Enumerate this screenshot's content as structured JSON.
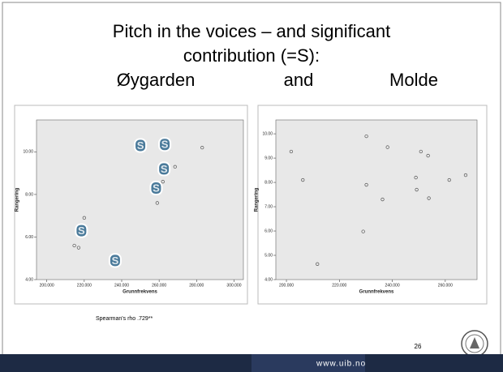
{
  "slide": {
    "title_lines": [
      "Pitch in the voices – and significant",
      "contribution (=S):"
    ],
    "subtitle_left": "Øygarden",
    "subtitle_middle": "and",
    "subtitle_right": "Molde",
    "note": "Spearman's rho .729**",
    "page_number": "26",
    "footer_url": "www.uib.no"
  },
  "chart_data": [
    {
      "type": "scatter",
      "xlabel": "Grunnfrekvens",
      "ylabel": "Rangering",
      "xlim": [
        194.5,
        305
      ],
      "ylim": [
        4,
        11.5
      ],
      "xticks": [
        {
          "value": 200,
          "label": "200.000"
        },
        {
          "value": 220,
          "label": "220.000"
        },
        {
          "value": 240,
          "label": "240.000"
        },
        {
          "value": 260,
          "label": "260.000"
        },
        {
          "value": 280,
          "label": "280.000"
        },
        {
          "value": 300,
          "label": "300.000"
        }
      ],
      "yticks": [
        {
          "value": 4,
          "label": "4.00"
        },
        {
          "value": 6,
          "label": "6.00"
        },
        {
          "value": 8,
          "label": "8.00"
        },
        {
          "value": 10,
          "label": "10.00"
        }
      ],
      "series": [
        {
          "color": "#555555",
          "x": [
            214.7,
            217,
            220,
            262,
            259,
            268.5,
            283
          ],
          "values": [
            5.6,
            5.5,
            6.9,
            8.6,
            7.6,
            9.3,
            10.2
          ]
        },
        {
          "color": "#4a7a9a",
          "marker_label": "S",
          "x": [
            218.5,
            236.5,
            250,
            263,
            262.6,
            258.4
          ],
          "values": [
            6.3,
            4.9,
            10.3,
            10.35,
            9.2,
            8.3
          ]
        }
      ]
    },
    {
      "type": "scatter",
      "xlabel": "Grunnfrekvens",
      "ylabel": "Rangering",
      "xlim": [
        196,
        272
      ],
      "ylim": [
        4,
        10.57
      ],
      "xticks": [
        {
          "value": 200,
          "label": "200.000"
        },
        {
          "value": 220,
          "label": "220.000"
        },
        {
          "value": 240,
          "label": "240.000"
        },
        {
          "value": 260,
          "label": "260.000"
        }
      ],
      "yticks": [
        {
          "value": 4,
          "label": "4.00"
        },
        {
          "value": 5,
          "label": "5.00"
        },
        {
          "value": 6,
          "label": "6.00"
        },
        {
          "value": 7,
          "label": "7.00"
        },
        {
          "value": 8,
          "label": "8.00"
        },
        {
          "value": 9,
          "label": "9.00"
        },
        {
          "value": 10,
          "label": "10.00"
        }
      ],
      "series": [
        {
          "color": "#555555",
          "x": [
            201.8,
            206.2,
            211.7,
            230.2,
            230.2,
            229,
            236.3,
            238.2,
            250.8,
            253.5,
            248.9,
            249.2,
            253.8,
            261.5,
            267.7
          ],
          "values": [
            9.27,
            8.1,
            4.64,
            9.9,
            7.9,
            5.98,
            7.3,
            9.45,
            9.27,
            9.1,
            8.2,
            7.7,
            7.35,
            8.1,
            8.3
          ]
        }
      ]
    }
  ]
}
